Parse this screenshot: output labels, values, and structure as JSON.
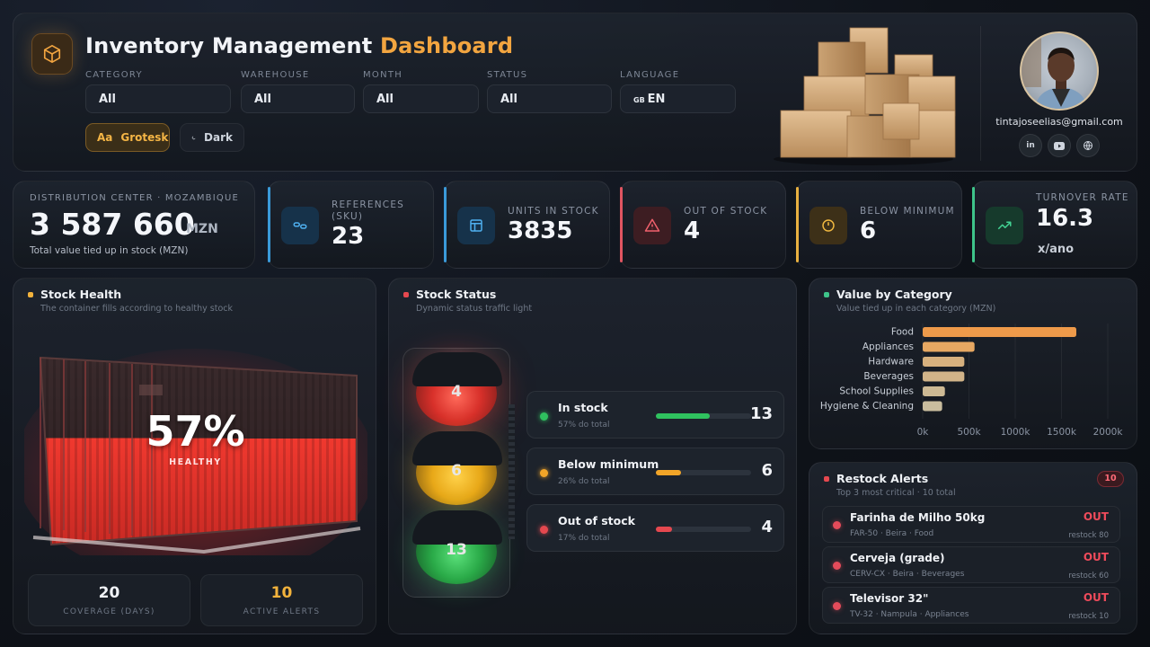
{
  "header": {
    "title_main": "Inventory Management",
    "title_accent": "Dashboard",
    "filters": [
      {
        "label": "CATEGORY",
        "value": "All"
      },
      {
        "label": "WAREHOUSE",
        "value": "All"
      },
      {
        "label": "MONTH",
        "value": "All"
      },
      {
        "label": "STATUS",
        "value": "All"
      },
      {
        "label": "LANGUAGE",
        "value": "EN",
        "flag": "GB"
      }
    ],
    "font_chip": {
      "icon": "Aa",
      "label": "Grotesk"
    },
    "theme_chip": {
      "label": "Dark"
    },
    "email": "tintajoseelias@gmail.com",
    "social": [
      "in",
      "youtube-icon",
      "globe-icon"
    ]
  },
  "kpis": {
    "total": {
      "label": "DISTRIBUTION CENTER · MOZAMBIQUE",
      "value": "3 587 660",
      "unit": "MZN",
      "caption": "Total value tied up in stock (MZN)"
    },
    "references": {
      "label1": "REFERENCES",
      "label2": "(SKU)",
      "value": "23",
      "color": "#3a9ad9"
    },
    "units": {
      "label": "UNITS IN STOCK",
      "value": "3835",
      "color": "#3a9ad9"
    },
    "out": {
      "label": "OUT OF STOCK",
      "value": "4",
      "color": "#e05561"
    },
    "below": {
      "label": "BELOW MINIMUM",
      "value": "6",
      "color": "#e8b040"
    },
    "turnover": {
      "label": "TURNOVER RATE",
      "value": "16.3",
      "unit": "x/ano",
      "color": "#3ec48a"
    }
  },
  "health": {
    "title": "Stock Health",
    "subtitle": "The container fills according to healthy stock",
    "percent": "57%",
    "fill_fraction": 0.57,
    "state": "HEALTHY",
    "coverage": {
      "value": "20",
      "label": "COVERAGE (DAYS)"
    },
    "alerts": {
      "value": "10",
      "label": "ACTIVE ALERTS"
    }
  },
  "status": {
    "title": "Stock Status",
    "subtitle": "Dynamic status traffic light",
    "lights": [
      "4",
      "6",
      "13"
    ],
    "items": [
      {
        "name": "In stock",
        "sub": "57% do total",
        "count": "13",
        "fraction": 0.57,
        "color": "#2fc25f"
      },
      {
        "name": "Below minimum",
        "sub": "26% do total",
        "count": "6",
        "fraction": 0.26,
        "color": "#f2a528"
      },
      {
        "name": "Out of stock",
        "sub": "17% do total",
        "count": "4",
        "fraction": 0.17,
        "color": "#e5484f"
      }
    ]
  },
  "category": {
    "title": "Value by Category",
    "subtitle": "Value tied up in each category (MZN)"
  },
  "chart_data": {
    "type": "bar",
    "orientation": "horizontal",
    "categories": [
      "Food",
      "Appliances",
      "Hardware",
      "Beverages",
      "School Supplies",
      "Hygiene & Cleaning"
    ],
    "values": [
      1660000,
      560000,
      450000,
      450000,
      240000,
      210000
    ],
    "xlim": [
      0,
      2000000
    ],
    "xticks": [
      "0k",
      "500k",
      "1000k",
      "1500k",
      "2000k"
    ],
    "grid": true,
    "bar_colors": [
      "#ee9a4a",
      "#e7a862",
      "#d6b07e",
      "#d2b489",
      "#cdb994",
      "#c9bd9e"
    ]
  },
  "alerts": {
    "title": "Restock Alerts",
    "badge": "10",
    "subtitle": "Top 3 most critical · 10 total",
    "items": [
      {
        "name": "Farinha de Milho 50kg",
        "meta": "FAR-50 · Beira · Food",
        "status": "OUT",
        "restock": "restock 80"
      },
      {
        "name": "Cerveja (grade)",
        "meta": "CERV-CX · Beira · Beverages",
        "status": "OUT",
        "restock": "restock 60"
      },
      {
        "name": "Televisor 32\"",
        "meta": "TV-32 · Nampula · Appliances",
        "status": "OUT",
        "restock": "restock 10"
      }
    ]
  }
}
